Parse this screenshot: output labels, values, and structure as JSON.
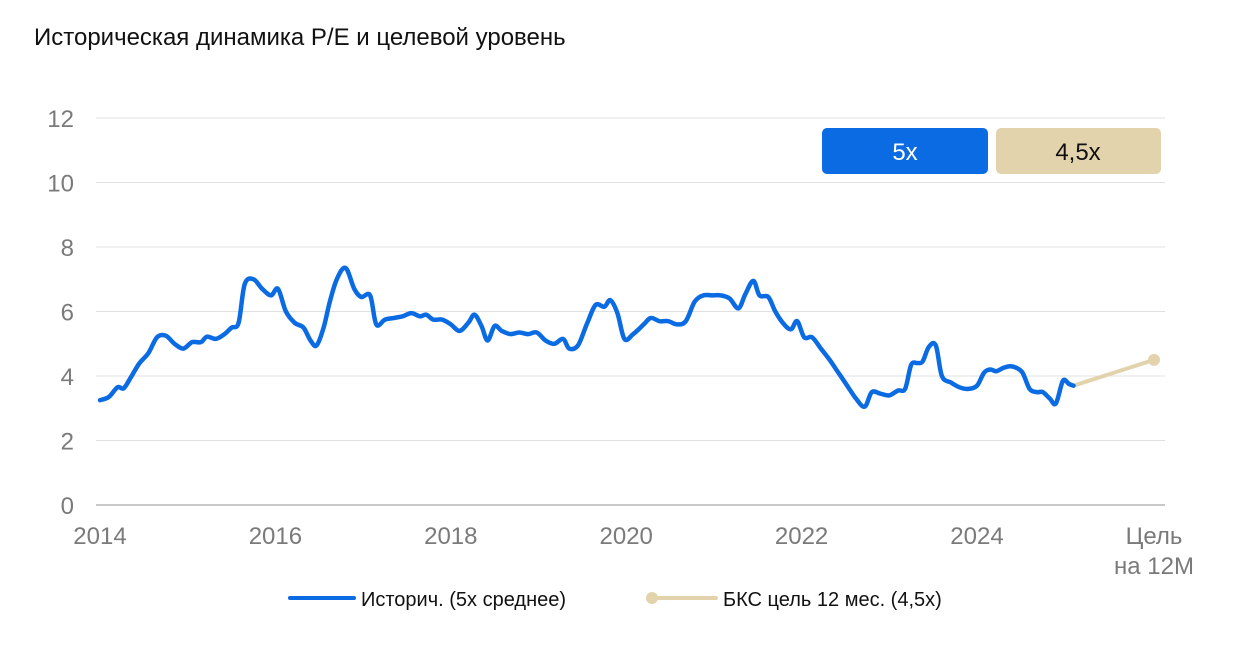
{
  "title": "Историческая динамика P/E и целевой уровень",
  "badges": {
    "hist_label": "5x",
    "target_label": "4,5x"
  },
  "colors": {
    "hist": "#0a6be3",
    "target": "#e3d3ad",
    "grid": "#e0e0e0",
    "axis": "#c8c8c8",
    "tick": "#7a7a7a"
  },
  "chart_data": {
    "type": "line",
    "title": "Историческая динамика P/E и целевой уровень",
    "xlabel": "",
    "ylabel": "",
    "ylim": [
      0,
      12
    ],
    "yticks": [
      0,
      2,
      4,
      6,
      8,
      10,
      12
    ],
    "xticks": [
      "2014",
      "2016",
      "2018",
      "2020",
      "2022",
      "2024"
    ],
    "xtick_extra": [
      "Цель",
      "на 12М"
    ],
    "grid": true,
    "legend_position": "bottom",
    "series": [
      {
        "name": "Историч. (5x среднее)",
        "values": [
          [
            2014.0,
            3.25
          ],
          [
            2014.1,
            3.35
          ],
          [
            2014.2,
            3.65
          ],
          [
            2014.27,
            3.62
          ],
          [
            2014.35,
            3.95
          ],
          [
            2014.45,
            4.4
          ],
          [
            2014.55,
            4.7
          ],
          [
            2014.65,
            5.2
          ],
          [
            2014.75,
            5.25
          ],
          [
            2014.85,
            5.0
          ],
          [
            2014.95,
            4.85
          ],
          [
            2015.05,
            5.05
          ],
          [
            2015.15,
            5.05
          ],
          [
            2015.22,
            5.22
          ],
          [
            2015.32,
            5.15
          ],
          [
            2015.42,
            5.3
          ],
          [
            2015.5,
            5.5
          ],
          [
            2015.58,
            5.65
          ],
          [
            2015.65,
            6.85
          ],
          [
            2015.75,
            7.0
          ],
          [
            2015.85,
            6.7
          ],
          [
            2015.95,
            6.5
          ],
          [
            2016.03,
            6.7
          ],
          [
            2016.12,
            6.0
          ],
          [
            2016.22,
            5.65
          ],
          [
            2016.32,
            5.5
          ],
          [
            2016.4,
            5.1
          ],
          [
            2016.47,
            4.95
          ],
          [
            2016.55,
            5.5
          ],
          [
            2016.62,
            6.3
          ],
          [
            2016.7,
            7.0
          ],
          [
            2016.8,
            7.35
          ],
          [
            2016.9,
            6.7
          ],
          [
            2016.98,
            6.45
          ],
          [
            2017.08,
            6.5
          ],
          [
            2017.15,
            5.6
          ],
          [
            2017.25,
            5.75
          ],
          [
            2017.35,
            5.8
          ],
          [
            2017.45,
            5.85
          ],
          [
            2017.55,
            5.95
          ],
          [
            2017.65,
            5.85
          ],
          [
            2017.72,
            5.9
          ],
          [
            2017.8,
            5.75
          ],
          [
            2017.9,
            5.75
          ],
          [
            2018.0,
            5.6
          ],
          [
            2018.1,
            5.4
          ],
          [
            2018.2,
            5.65
          ],
          [
            2018.27,
            5.9
          ],
          [
            2018.35,
            5.55
          ],
          [
            2018.42,
            5.1
          ],
          [
            2018.5,
            5.55
          ],
          [
            2018.58,
            5.4
          ],
          [
            2018.68,
            5.3
          ],
          [
            2018.78,
            5.35
          ],
          [
            2018.88,
            5.3
          ],
          [
            2018.98,
            5.35
          ],
          [
            2019.08,
            5.1
          ],
          [
            2019.18,
            5.0
          ],
          [
            2019.28,
            5.15
          ],
          [
            2019.35,
            4.85
          ],
          [
            2019.45,
            4.95
          ],
          [
            2019.55,
            5.6
          ],
          [
            2019.65,
            6.2
          ],
          [
            2019.75,
            6.15
          ],
          [
            2019.82,
            6.35
          ],
          [
            2019.9,
            5.95
          ],
          [
            2019.98,
            5.15
          ],
          [
            2020.08,
            5.3
          ],
          [
            2020.2,
            5.6
          ],
          [
            2020.28,
            5.8
          ],
          [
            2020.38,
            5.7
          ],
          [
            2020.48,
            5.7
          ],
          [
            2020.58,
            5.6
          ],
          [
            2020.68,
            5.7
          ],
          [
            2020.78,
            6.3
          ],
          [
            2020.88,
            6.5
          ],
          [
            2020.98,
            6.5
          ],
          [
            2021.08,
            6.5
          ],
          [
            2021.18,
            6.4
          ],
          [
            2021.28,
            6.1
          ],
          [
            2021.36,
            6.55
          ],
          [
            2021.45,
            6.95
          ],
          [
            2021.52,
            6.5
          ],
          [
            2021.62,
            6.45
          ],
          [
            2021.7,
            6.0
          ],
          [
            2021.8,
            5.6
          ],
          [
            2021.88,
            5.45
          ],
          [
            2021.95,
            5.7
          ],
          [
            2022.03,
            5.2
          ],
          [
            2022.12,
            5.2
          ],
          [
            2022.22,
            4.85
          ],
          [
            2022.32,
            4.5
          ],
          [
            2022.42,
            4.1
          ],
          [
            2022.52,
            3.7
          ],
          [
            2022.62,
            3.3
          ],
          [
            2022.72,
            3.05
          ],
          [
            2022.8,
            3.5
          ],
          [
            2022.9,
            3.45
          ],
          [
            2023.0,
            3.4
          ],
          [
            2023.1,
            3.55
          ],
          [
            2023.18,
            3.6
          ],
          [
            2023.25,
            4.35
          ],
          [
            2023.32,
            4.4
          ],
          [
            2023.38,
            4.45
          ],
          [
            2023.45,
            4.9
          ],
          [
            2023.53,
            4.95
          ],
          [
            2023.6,
            4.0
          ],
          [
            2023.7,
            3.8
          ],
          [
            2023.8,
            3.65
          ],
          [
            2023.9,
            3.6
          ],
          [
            2024.0,
            3.7
          ],
          [
            2024.08,
            4.1
          ],
          [
            2024.15,
            4.2
          ],
          [
            2024.22,
            4.15
          ],
          [
            2024.3,
            4.25
          ],
          [
            2024.38,
            4.3
          ],
          [
            2024.45,
            4.25
          ],
          [
            2024.52,
            4.1
          ],
          [
            2024.6,
            3.6
          ],
          [
            2024.68,
            3.5
          ],
          [
            2024.75,
            3.5
          ],
          [
            2024.83,
            3.3
          ],
          [
            2024.9,
            3.15
          ],
          [
            2024.98,
            3.85
          ],
          [
            2025.05,
            3.75
          ],
          [
            2025.1,
            3.7
          ]
        ]
      },
      {
        "name": "БКС цель 12 мес. (4,5x)",
        "values": [
          [
            2025.1,
            3.7
          ],
          [
            "Цель на 12М",
            4.5
          ]
        ]
      }
    ]
  },
  "legend": {
    "hist": "Историч. (5x среднее)",
    "target": "БКС цель 12 мес. (4,5x)"
  }
}
